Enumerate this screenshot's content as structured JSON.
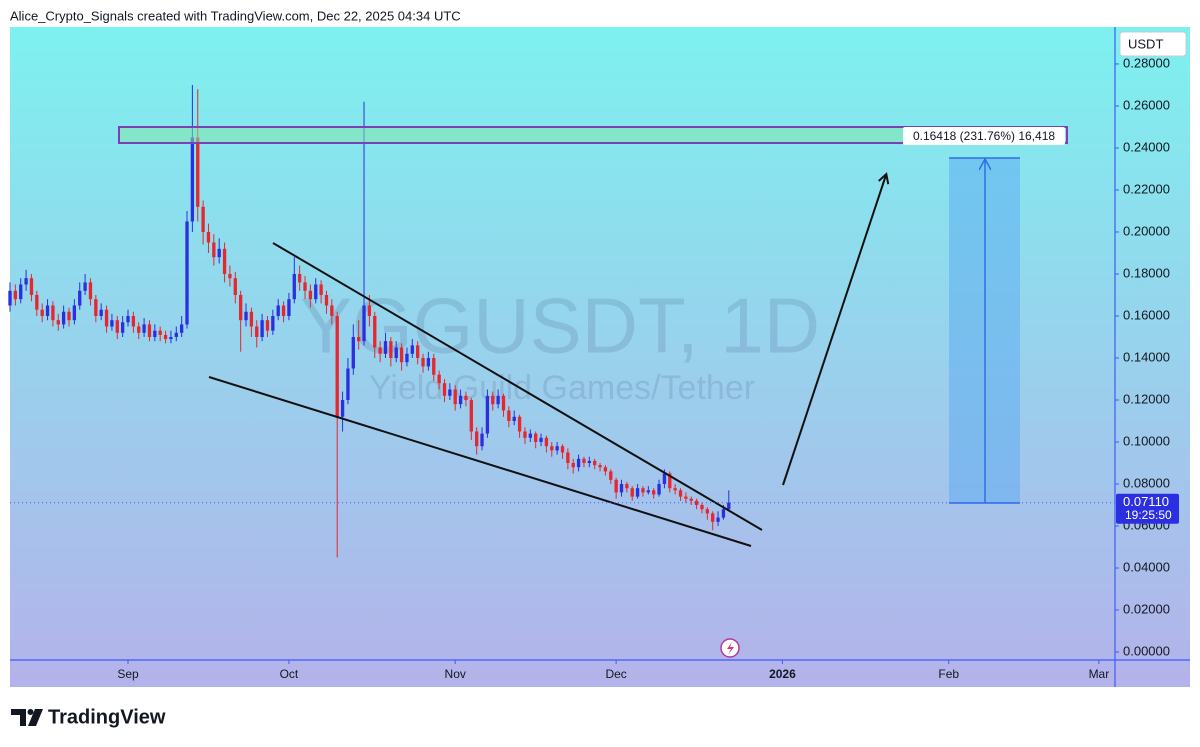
{
  "header": "Alice_Crypto_Signals created with TradingView.com, Dec 22, 2025 04:34 UTC",
  "brand": "TradingView",
  "chart_data": {
    "type": "candlestick",
    "symbol": "YGGUSDT, 1D",
    "description": "Yield Guild Games/Tether",
    "currency": "USDT",
    "up_color": "#2b2fe0",
    "down_color": "#e8262e",
    "xlim": [
      0,
      206
    ],
    "ylim": [
      -0.0038,
      0.2976
    ],
    "xticks": [
      {
        "value": 22,
        "label": "Sep"
      },
      {
        "value": 52,
        "label": "Oct"
      },
      {
        "value": 83,
        "label": "Nov"
      },
      {
        "value": 113,
        "label": "Dec"
      },
      {
        "value": 144,
        "label": "2026"
      },
      {
        "value": 175,
        "label": "Feb"
      },
      {
        "value": 203,
        "label": "Mar"
      }
    ],
    "yticks": [
      {
        "value": 0,
        "label": "0.00000"
      },
      {
        "value": 0.02,
        "label": "0.02000"
      },
      {
        "value": 0.04,
        "label": "0.04000"
      },
      {
        "value": 0.06,
        "label": "0.06000"
      },
      {
        "value": 0.08,
        "label": "0.08000"
      },
      {
        "value": 0.1,
        "label": "0.10000"
      },
      {
        "value": 0.12,
        "label": "0.12000"
      },
      {
        "value": 0.14,
        "label": "0.14000"
      },
      {
        "value": 0.16,
        "label": "0.16000"
      },
      {
        "value": 0.18,
        "label": "0.18000"
      },
      {
        "value": 0.2,
        "label": "0.20000"
      },
      {
        "value": 0.22,
        "label": "0.22000"
      },
      {
        "value": 0.24,
        "label": "0.24000"
      },
      {
        "value": 0.26,
        "label": "0.26000"
      },
      {
        "value": 0.28,
        "label": "0.28000"
      }
    ],
    "last_price": {
      "value": 0.0711,
      "label": "0.07110"
    },
    "countdown": "19:25:50",
    "measure_label": "0.16418 (231.76%) 16,418",
    "x": [
      0,
      1,
      2,
      3,
      4,
      5,
      6,
      7,
      8,
      9,
      10,
      11,
      12,
      13,
      14,
      15,
      16,
      17,
      18,
      19,
      20,
      21,
      22,
      23,
      24,
      25,
      26,
      27,
      28,
      29,
      30,
      31,
      32,
      33,
      34,
      35,
      36,
      37,
      38,
      39,
      40,
      41,
      42,
      43,
      44,
      45,
      46,
      47,
      48,
      49,
      50,
      51,
      52,
      53,
      54,
      55,
      56,
      57,
      58,
      59,
      60,
      61,
      62,
      63,
      64,
      65,
      66,
      67,
      68,
      69,
      70,
      71,
      72,
      73,
      74,
      75,
      76,
      77,
      78,
      79,
      80,
      81,
      82,
      83,
      84,
      85,
      86,
      87,
      88,
      89,
      90,
      91,
      92,
      93,
      94,
      95,
      96,
      97,
      98,
      99,
      100,
      101,
      102,
      103,
      104,
      105,
      106,
      107,
      108,
      109,
      110,
      111,
      112,
      113,
      114,
      115,
      116,
      117,
      118,
      119,
      120,
      121,
      122,
      123,
      124,
      125,
      126,
      127,
      128,
      129,
      130,
      131,
      132,
      133,
      134
    ],
    "ohlc": [
      [
        0.165,
        0.176,
        0.162,
        0.172
      ],
      [
        0.172,
        0.175,
        0.165,
        0.168
      ],
      [
        0.168,
        0.178,
        0.166,
        0.175
      ],
      [
        0.175,
        0.182,
        0.172,
        0.178
      ],
      [
        0.178,
        0.18,
        0.167,
        0.17
      ],
      [
        0.17,
        0.172,
        0.16,
        0.163
      ],
      [
        0.163,
        0.166,
        0.157,
        0.16
      ],
      [
        0.16,
        0.168,
        0.158,
        0.165
      ],
      [
        0.165,
        0.167,
        0.155,
        0.158
      ],
      [
        0.158,
        0.161,
        0.153,
        0.156
      ],
      [
        0.156,
        0.165,
        0.154,
        0.162
      ],
      [
        0.162,
        0.164,
        0.155,
        0.158
      ],
      [
        0.158,
        0.168,
        0.156,
        0.165
      ],
      [
        0.165,
        0.176,
        0.163,
        0.172
      ],
      [
        0.172,
        0.18,
        0.17,
        0.176
      ],
      [
        0.176,
        0.178,
        0.165,
        0.168
      ],
      [
        0.168,
        0.17,
        0.157,
        0.16
      ],
      [
        0.16,
        0.166,
        0.158,
        0.163
      ],
      [
        0.163,
        0.165,
        0.152,
        0.155
      ],
      [
        0.155,
        0.161,
        0.153,
        0.158
      ],
      [
        0.158,
        0.16,
        0.149,
        0.152
      ],
      [
        0.152,
        0.16,
        0.15,
        0.157
      ],
      [
        0.157,
        0.163,
        0.155,
        0.16
      ],
      [
        0.16,
        0.162,
        0.152,
        0.155
      ],
      [
        0.155,
        0.157,
        0.149,
        0.152
      ],
      [
        0.152,
        0.159,
        0.15,
        0.156
      ],
      [
        0.156,
        0.158,
        0.148,
        0.15
      ],
      [
        0.15,
        0.156,
        0.148,
        0.153
      ],
      [
        0.153,
        0.155,
        0.148,
        0.151
      ],
      [
        0.151,
        0.153,
        0.147,
        0.149
      ],
      [
        0.149,
        0.153,
        0.147,
        0.15
      ],
      [
        0.15,
        0.155,
        0.148,
        0.152
      ],
      [
        0.152,
        0.16,
        0.15,
        0.156
      ],
      [
        0.156,
        0.21,
        0.154,
        0.205
      ],
      [
        0.205,
        0.27,
        0.2,
        0.245
      ],
      [
        0.245,
        0.268,
        0.205,
        0.212
      ],
      [
        0.212,
        0.215,
        0.194,
        0.2
      ],
      [
        0.2,
        0.204,
        0.19,
        0.195
      ],
      [
        0.195,
        0.199,
        0.184,
        0.188
      ],
      [
        0.188,
        0.197,
        0.185,
        0.192
      ],
      [
        0.192,
        0.195,
        0.176,
        0.18
      ],
      [
        0.18,
        0.184,
        0.174,
        0.178
      ],
      [
        0.178,
        0.181,
        0.166,
        0.17
      ],
      [
        0.17,
        0.172,
        0.143,
        0.158
      ],
      [
        0.158,
        0.166,
        0.155,
        0.162
      ],
      [
        0.162,
        0.164,
        0.15,
        0.155
      ],
      [
        0.155,
        0.158,
        0.145,
        0.15
      ],
      [
        0.15,
        0.161,
        0.148,
        0.158
      ],
      [
        0.158,
        0.16,
        0.15,
        0.153
      ],
      [
        0.153,
        0.163,
        0.151,
        0.16
      ],
      [
        0.16,
        0.168,
        0.158,
        0.165
      ],
      [
        0.165,
        0.167,
        0.157,
        0.16
      ],
      [
        0.16,
        0.171,
        0.158,
        0.168
      ],
      [
        0.168,
        0.188,
        0.166,
        0.18
      ],
      [
        0.18,
        0.184,
        0.172,
        0.176
      ],
      [
        0.176,
        0.179,
        0.168,
        0.172
      ],
      [
        0.172,
        0.175,
        0.164,
        0.168
      ],
      [
        0.168,
        0.178,
        0.166,
        0.175
      ],
      [
        0.175,
        0.177,
        0.166,
        0.17
      ],
      [
        0.17,
        0.172,
        0.161,
        0.165
      ],
      [
        0.165,
        0.168,
        0.156,
        0.16
      ],
      [
        0.16,
        0.162,
        0.045,
        0.112
      ],
      [
        0.112,
        0.124,
        0.105,
        0.12
      ],
      [
        0.12,
        0.14,
        0.118,
        0.135
      ],
      [
        0.135,
        0.156,
        0.132,
        0.15
      ],
      [
        0.15,
        0.158,
        0.144,
        0.148
      ],
      [
        0.148,
        0.262,
        0.146,
        0.165
      ],
      [
        0.165,
        0.17,
        0.155,
        0.16
      ],
      [
        0.16,
        0.162,
        0.14,
        0.145
      ],
      [
        0.145,
        0.148,
        0.138,
        0.142
      ],
      [
        0.142,
        0.152,
        0.14,
        0.148
      ],
      [
        0.148,
        0.15,
        0.136,
        0.14
      ],
      [
        0.14,
        0.148,
        0.138,
        0.145
      ],
      [
        0.145,
        0.147,
        0.134,
        0.138
      ],
      [
        0.138,
        0.145,
        0.136,
        0.142
      ],
      [
        0.142,
        0.149,
        0.14,
        0.146
      ],
      [
        0.146,
        0.148,
        0.137,
        0.14
      ],
      [
        0.14,
        0.142,
        0.133,
        0.136
      ],
      [
        0.136,
        0.143,
        0.134,
        0.14
      ],
      [
        0.14,
        0.142,
        0.129,
        0.132
      ],
      [
        0.132,
        0.134,
        0.125,
        0.128
      ],
      [
        0.128,
        0.13,
        0.119,
        0.122
      ],
      [
        0.122,
        0.128,
        0.12,
        0.125
      ],
      [
        0.125,
        0.127,
        0.115,
        0.118
      ],
      [
        0.118,
        0.125,
        0.116,
        0.122
      ],
      [
        0.122,
        0.124,
        0.117,
        0.12
      ],
      [
        0.12,
        0.121,
        0.101,
        0.105
      ],
      [
        0.105,
        0.107,
        0.094,
        0.098
      ],
      [
        0.098,
        0.107,
        0.096,
        0.104
      ],
      [
        0.104,
        0.125,
        0.102,
        0.122
      ],
      [
        0.122,
        0.124,
        0.115,
        0.118
      ],
      [
        0.118,
        0.125,
        0.116,
        0.122
      ],
      [
        0.122,
        0.123,
        0.112,
        0.115
      ],
      [
        0.115,
        0.117,
        0.107,
        0.11
      ],
      [
        0.11,
        0.115,
        0.108,
        0.112
      ],
      [
        0.112,
        0.113,
        0.102,
        0.105
      ],
      [
        0.105,
        0.107,
        0.099,
        0.102
      ],
      [
        0.102,
        0.106,
        0.1,
        0.104
      ],
      [
        0.104,
        0.105,
        0.097,
        0.1
      ],
      [
        0.1,
        0.104,
        0.098,
        0.102
      ],
      [
        0.102,
        0.103,
        0.095,
        0.098
      ],
      [
        0.098,
        0.1,
        0.093,
        0.096
      ],
      [
        0.096,
        0.1,
        0.094,
        0.098
      ],
      [
        0.098,
        0.099,
        0.092,
        0.095
      ],
      [
        0.095,
        0.097,
        0.087,
        0.09
      ],
      [
        0.09,
        0.092,
        0.085,
        0.088
      ],
      [
        0.088,
        0.094,
        0.086,
        0.092
      ],
      [
        0.092,
        0.093,
        0.088,
        0.09
      ],
      [
        0.09,
        0.093,
        0.088,
        0.091
      ],
      [
        0.091,
        0.092,
        0.087,
        0.089
      ],
      [
        0.089,
        0.09,
        0.086,
        0.088
      ],
      [
        0.088,
        0.089,
        0.084,
        0.086
      ],
      [
        0.086,
        0.087,
        0.08,
        0.082
      ],
      [
        0.082,
        0.083,
        0.073,
        0.076
      ],
      [
        0.076,
        0.082,
        0.074,
        0.08
      ],
      [
        0.08,
        0.081,
        0.076,
        0.078
      ],
      [
        0.078,
        0.079,
        0.072,
        0.074
      ],
      [
        0.074,
        0.08,
        0.073,
        0.078
      ],
      [
        0.078,
        0.079,
        0.074,
        0.076
      ],
      [
        0.076,
        0.079,
        0.075,
        0.077
      ],
      [
        0.077,
        0.078,
        0.073,
        0.075
      ],
      [
        0.075,
        0.082,
        0.074,
        0.08
      ],
      [
        0.08,
        0.087,
        0.078,
        0.085
      ],
      [
        0.085,
        0.086,
        0.076,
        0.078
      ],
      [
        0.078,
        0.08,
        0.075,
        0.077
      ],
      [
        0.077,
        0.078,
        0.072,
        0.074
      ],
      [
        0.074,
        0.076,
        0.071,
        0.073
      ],
      [
        0.073,
        0.074,
        0.07,
        0.072
      ],
      [
        0.072,
        0.073,
        0.068,
        0.07
      ],
      [
        0.07,
        0.071,
        0.066,
        0.068
      ],
      [
        0.068,
        0.069,
        0.063,
        0.066
      ],
      [
        0.066,
        0.067,
        0.058,
        0.062
      ],
      [
        0.062,
        0.067,
        0.06,
        0.064
      ],
      [
        0.064,
        0.07,
        0.063,
        0.068
      ],
      [
        0.068,
        0.077,
        0.067,
        0.0711
      ]
    ]
  }
}
